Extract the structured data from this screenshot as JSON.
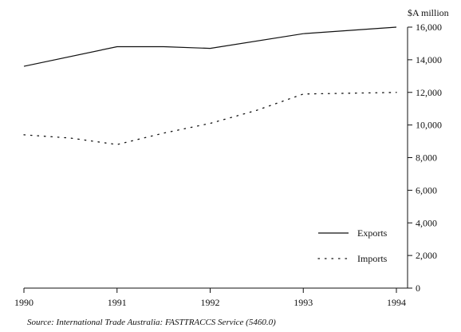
{
  "chart_data": {
    "type": "line",
    "x": [
      "1990",
      "1991",
      "1992",
      "1993",
      "1994"
    ],
    "x_tick_labels": [
      "1990",
      "1991",
      "1992",
      "1993",
      "1994"
    ],
    "ylabel": "$A million",
    "ylim": [
      0,
      16000
    ],
    "y_ticks": [
      0,
      2000,
      4000,
      6000,
      8000,
      10000,
      12000,
      14000,
      16000
    ],
    "y_tick_labels": [
      "0",
      "2,000",
      "4,000",
      "6,000",
      "8,000",
      "10,000",
      "12,000",
      "14,000",
      "16,000"
    ],
    "y_axis_side": "right",
    "grid": false,
    "legend_placement": "bottom-right",
    "series": [
      {
        "name": "Exports",
        "style": "solid",
        "color": "#111111",
        "points": [
          [
            1990.0,
            13600
          ],
          [
            1991.0,
            14800
          ],
          [
            1991.5,
            14800
          ],
          [
            1992.0,
            14700
          ],
          [
            1993.0,
            15600
          ],
          [
            1994.0,
            16000
          ]
        ]
      },
      {
        "name": "Imports",
        "style": "dotted",
        "color": "#111111",
        "points": [
          [
            1990.0,
            9400
          ],
          [
            1990.5,
            9200
          ],
          [
            1991.0,
            8800
          ],
          [
            1991.5,
            9500
          ],
          [
            1992.0,
            10100
          ],
          [
            1992.5,
            10900
          ],
          [
            1993.0,
            11900
          ],
          [
            1994.0,
            12000
          ]
        ]
      }
    ]
  },
  "source": "Source: International Trade Australia: FASTTRACCS Service (5460.0)"
}
